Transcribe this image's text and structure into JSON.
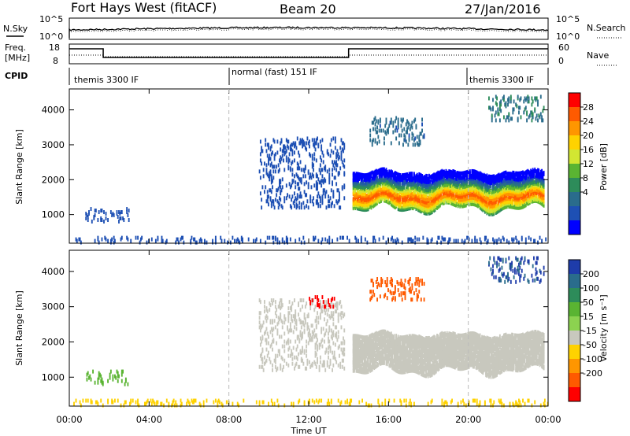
{
  "header": {
    "station": "Fort Hays West (fitACF)",
    "beam": "Beam 20",
    "date": "27/Jan/2016"
  },
  "noise_panel": {
    "left_label": "N.Sky",
    "left_ticks": [
      "10^5",
      "10^0"
    ],
    "right_ticks": [
      "10^5",
      "10^0"
    ],
    "right_label": "N.Search"
  },
  "freq_panel": {
    "left_label_1": "Freq.",
    "left_label_2": "[MHz]",
    "left_ticks": [
      "18",
      "8"
    ],
    "right_ticks": [
      "60",
      "0"
    ],
    "right_label": "Nave",
    "steps": [
      {
        "from": 0.0,
        "to": 1.7,
        "level": "high"
      },
      {
        "from": 1.7,
        "to": 14.0,
        "level": "low"
      },
      {
        "from": 14.0,
        "to": 24.0,
        "level": "high"
      }
    ]
  },
  "cpid": {
    "label": "CPID",
    "segments": [
      {
        "start": 0.0,
        "name": "themis 3300 IF"
      },
      {
        "start": 8.0,
        "name": "normal (fast) 151 IF"
      },
      {
        "start": 20.0,
        "name": "themis 3300 IF"
      }
    ],
    "boundaries": [
      8.0,
      20.0
    ]
  },
  "axes": {
    "xlabel": "Time UT",
    "x_ticks": [
      "00:00",
      "04:00",
      "08:00",
      "12:00",
      "16:00",
      "20:00",
      "00:00"
    ],
    "x_tick_hours": [
      0,
      4,
      8,
      12,
      16,
      20,
      24
    ],
    "ylabel": "Slant Range [km]",
    "y_ticks": [
      1000,
      2000,
      3000,
      4000
    ],
    "ylim": [
      180,
      4600
    ],
    "xlim": [
      0,
      24
    ]
  },
  "power_colorbar": {
    "label": "Power [dB]",
    "ticks": [
      "28",
      "24",
      "20",
      "16",
      "12",
      "8",
      "4"
    ],
    "colors": [
      "#ff0000",
      "#ff5a00",
      "#ff9600",
      "#ffd200",
      "#d2e632",
      "#5ab432",
      "#2d8c5a",
      "#2a6c8c",
      "#1e50b4",
      "#0000ff"
    ]
  },
  "velocity_colorbar": {
    "label": "Velocity [m s⁻¹]",
    "ticks": [
      "200",
      "100",
      "50",
      "15",
      "-15",
      "-50",
      "-100",
      "-200"
    ],
    "colors": [
      "#1e3caa",
      "#2a6c8c",
      "#2d8c5a",
      "#5ab432",
      "#8cd250",
      "#c8c8be",
      "#ffd200",
      "#ff9600",
      "#ff5a00",
      "#ff0000"
    ]
  },
  "chart_data": [
    {
      "type": "heatmap",
      "title": "Power",
      "xlabel": "Time UT",
      "ylabel": "Slant Range [km]",
      "xlim": [
        0,
        24
      ],
      "ylim": [
        180,
        4600
      ],
      "regions": [
        {
          "t_start": 14.2,
          "t_end": 23.8,
          "range_low": 1200,
          "range_high": 2200,
          "peak_db": 28
        },
        {
          "t_start": 0.8,
          "t_end": 3.0,
          "range_low": 800,
          "range_high": 1200,
          "peak_db": 8
        },
        {
          "t_start": 9.5,
          "t_end": 13.8,
          "range_low": 1200,
          "range_high": 3200,
          "peak_db": 6
        },
        {
          "t_start": 0.0,
          "t_end": 24.0,
          "range_low": 200,
          "range_high": 350,
          "peak_db": 8
        },
        {
          "t_start": 15.0,
          "t_end": 17.8,
          "range_low": 3000,
          "range_high": 3800,
          "peak_db": 12
        },
        {
          "t_start": 21.0,
          "t_end": 23.8,
          "range_low": 3700,
          "range_high": 4400,
          "peak_db": 14
        }
      ]
    },
    {
      "type": "heatmap",
      "title": "Velocity",
      "xlabel": "Time UT",
      "ylabel": "Slant Range [km]",
      "xlim": [
        0,
        24
      ],
      "ylim": [
        180,
        4600
      ],
      "regions": [
        {
          "t_start": 14.2,
          "t_end": 23.8,
          "range_low": 1200,
          "range_high": 2200,
          "velocity": 0
        },
        {
          "t_start": 0.8,
          "t_end": 3.0,
          "range_low": 800,
          "range_high": 1200,
          "velocity": 30
        },
        {
          "t_start": 9.5,
          "t_end": 13.8,
          "range_low": 1200,
          "range_high": 3200,
          "velocity": 0
        },
        {
          "t_start": 0.0,
          "t_end": 24.0,
          "range_low": 200,
          "range_high": 350,
          "velocity": -40
        },
        {
          "t_start": 12.0,
          "t_end": 13.3,
          "range_low": 3000,
          "range_high": 3300,
          "velocity": -220
        },
        {
          "t_start": 15.0,
          "t_end": 17.8,
          "range_low": 3200,
          "range_high": 3800,
          "velocity": -150
        },
        {
          "t_start": 21.0,
          "t_end": 23.8,
          "range_low": 3700,
          "range_high": 4400,
          "velocity": 200
        }
      ]
    }
  ]
}
